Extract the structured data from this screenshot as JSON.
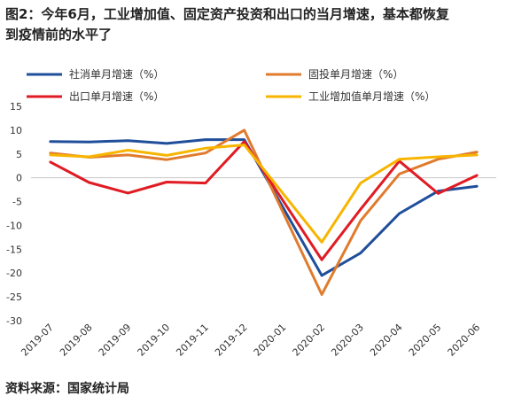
{
  "title": {
    "line1": "图2：今年6月，工业增加值、固定资产投资和出口的当月增速，基本都恢复",
    "line2": "到疫情前的水平了"
  },
  "source": "资料来源：国家统计局",
  "chart_data": {
    "type": "line",
    "categories": [
      "2019-07",
      "2019-08",
      "2019-09",
      "2019-10",
      "2019-11",
      "2019-12",
      "2020-01",
      "2020-02",
      "2020-03",
      "2020-04",
      "2020-05",
      "2020-06"
    ],
    "ylim": [
      -30,
      15
    ],
    "yticks": [
      15,
      10,
      5,
      0,
      -5,
      -10,
      -15,
      -20,
      -25,
      -30
    ],
    "grid": false,
    "legend_position": "top",
    "series": [
      {
        "name": "社消单月增速（%）",
        "color": "#1f4e9b",
        "values": [
          7.6,
          7.5,
          7.8,
          7.2,
          8.0,
          8.0,
          null,
          -20.5,
          -15.8,
          -7.5,
          -2.8,
          -1.8
        ]
      },
      {
        "name": "固投单月增速（%）",
        "color": "#e07b2e",
        "values": [
          5.2,
          4.3,
          4.8,
          3.8,
          5.2,
          10.0,
          null,
          -24.5,
          -9.0,
          0.8,
          3.9,
          5.4
        ]
      },
      {
        "name": "出口单月增速（%）",
        "color": "#e01b24",
        "values": [
          3.3,
          -1.0,
          -3.2,
          -0.9,
          -1.1,
          7.6,
          null,
          -17.2,
          -6.6,
          3.5,
          -3.3,
          0.5
        ]
      },
      {
        "name": "工业增加值单月增速（%）",
        "color": "#f7b500",
        "values": [
          4.8,
          4.4,
          5.8,
          4.7,
          6.2,
          6.9,
          null,
          -13.5,
          -1.1,
          3.9,
          4.4,
          4.8
        ]
      }
    ]
  }
}
